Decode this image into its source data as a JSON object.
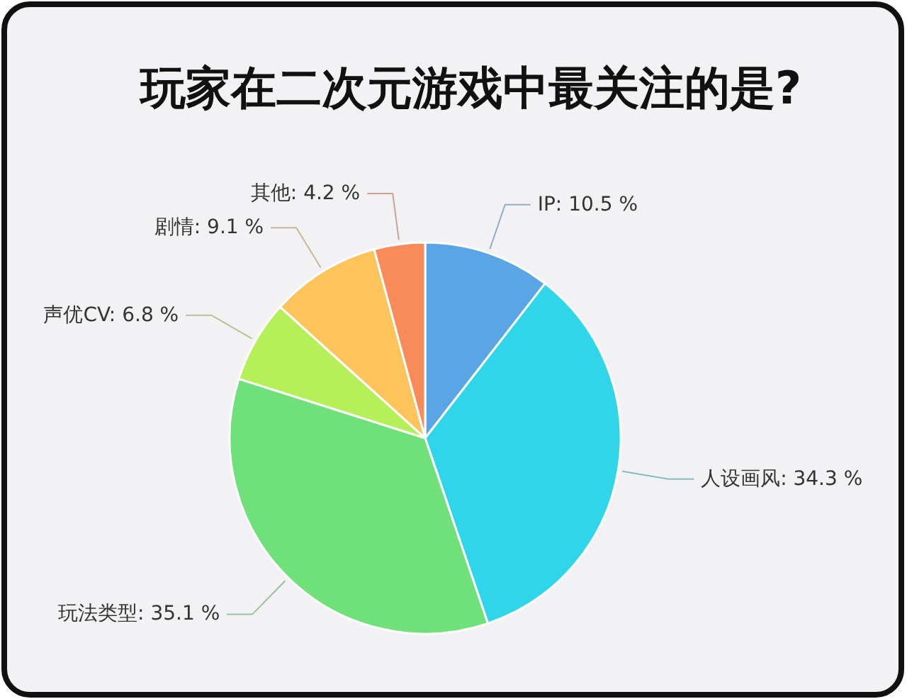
{
  "chart_data": {
    "type": "pie",
    "title": "玩家在二次元游戏中最关注的是?",
    "categories": [
      "IP",
      "人设画风",
      "玩法类型",
      "声优CV",
      "剧情",
      "其他"
    ],
    "values": [
      10.5,
      34.3,
      35.1,
      6.8,
      9.1,
      4.2
    ],
    "value_labels": [
      "10.5 %",
      "34.3 %",
      "35.1 %",
      "6.8 %",
      "9.1 %",
      "4.2 %"
    ],
    "colors": [
      "#5aa5e6",
      "#2fd6ea",
      "#6fe07a",
      "#b5ef5a",
      "#fcc45a",
      "#f98a5a"
    ]
  }
}
